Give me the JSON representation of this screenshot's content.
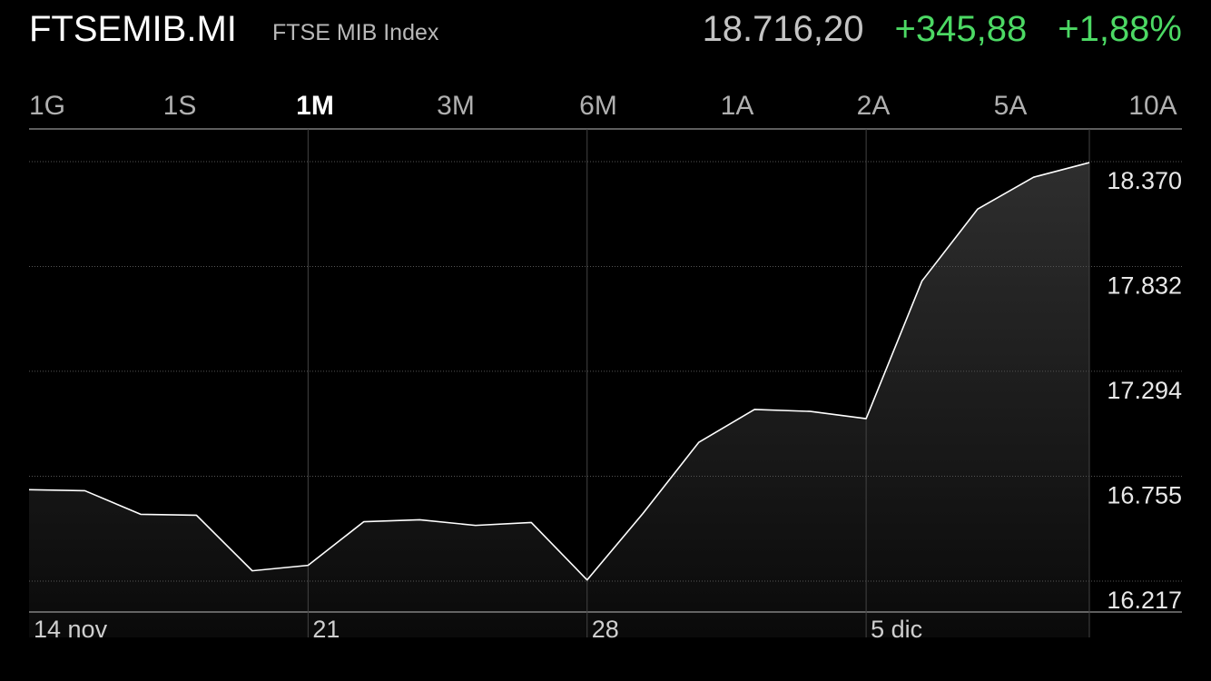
{
  "header": {
    "symbol": "FTSEMIB.MI",
    "name": "FTSE MIB Index",
    "price": "18.716,20",
    "change": "+345,88",
    "change_percent": "+1,88%"
  },
  "colors": {
    "positive": "#4cd964",
    "background": "#000000",
    "line": "#ffffff"
  },
  "ranges": [
    {
      "label": "1G",
      "active": false
    },
    {
      "label": "1S",
      "active": false
    },
    {
      "label": "1M",
      "active": true
    },
    {
      "label": "3M",
      "active": false
    },
    {
      "label": "6M",
      "active": false
    },
    {
      "label": "1A",
      "active": false
    },
    {
      "label": "2A",
      "active": false
    },
    {
      "label": "5A",
      "active": false
    },
    {
      "label": "10A",
      "active": false
    }
  ],
  "chart_data": {
    "type": "area",
    "x_tick_labels": [
      "14 nov",
      "21",
      "28",
      "5 dic"
    ],
    "y_tick_labels": [
      "18.370",
      "17.832",
      "17.294",
      "16.755",
      "16.217"
    ],
    "y_ticks": [
      18370,
      17832,
      17294,
      16755,
      16217
    ],
    "values": [
      16686,
      16681,
      16560,
      16555,
      16270,
      16298,
      16522,
      16532,
      16503,
      16518,
      16223,
      16564,
      16929,
      17098,
      17088,
      17051,
      17757,
      18127,
      18290,
      18365
    ],
    "x_tick_indices": [
      0,
      5,
      10,
      15
    ],
    "grid": true
  }
}
